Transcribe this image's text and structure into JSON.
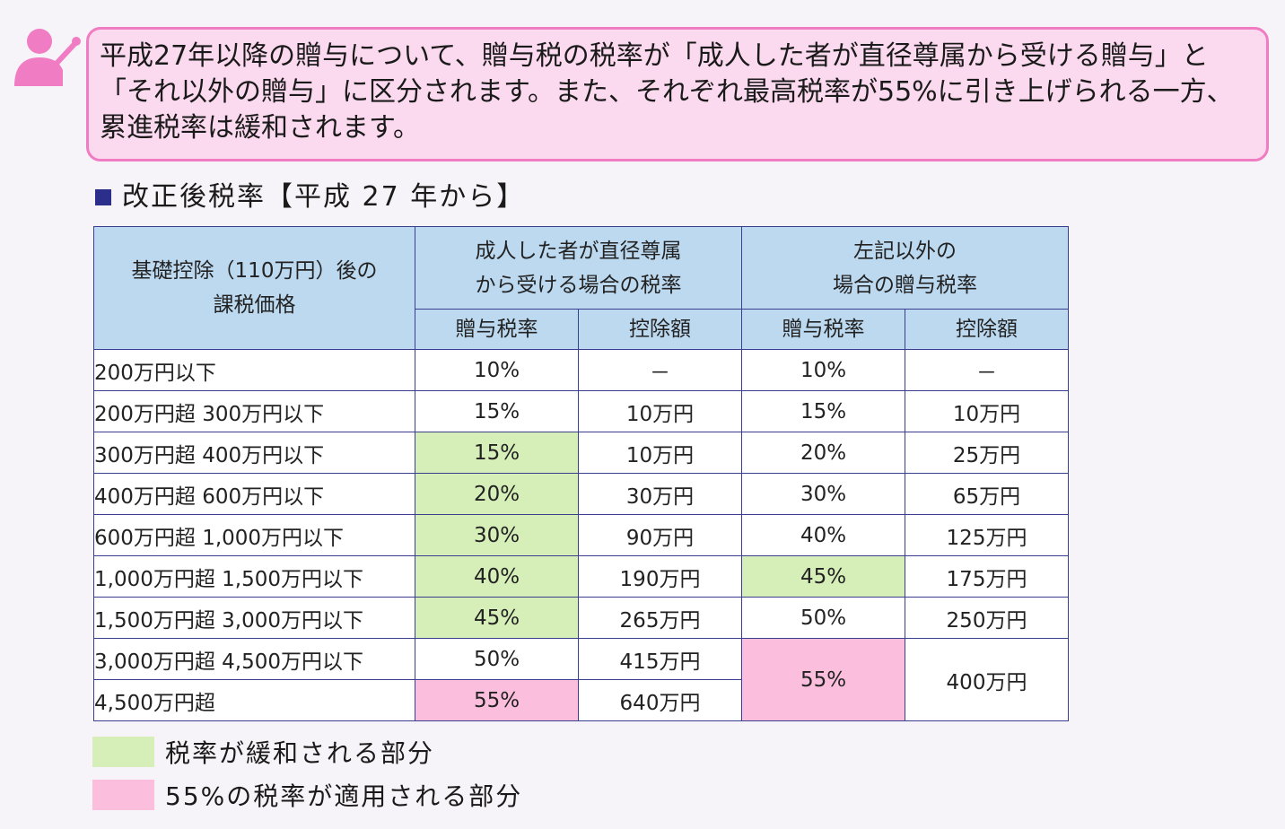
{
  "callout": {
    "text": "平成27年以降の贈与について、贈与税の税率が「成人した者が直径尊属から受ける贈与」と「それ以外の贈与」に区分されます。また、それぞれ最高税率が55%に引き上げられる一方、累進税率は緩和されます。"
  },
  "section": {
    "title": "改正後税率【平成 27 年から】"
  },
  "table": {
    "head_base": [
      "基礎控除（110万円）後の",
      "課税価格"
    ],
    "head_group1": [
      "成人した者が直径尊属",
      "から受ける場合の税率"
    ],
    "head_group2": [
      "左記以外の",
      "場合の贈与税率"
    ],
    "head_rate": "贈与税率",
    "head_deduct": "控除額",
    "rows": [
      {
        "range": "200万円以下",
        "rate1": "10%",
        "ded1": "－",
        "rate2": "10%",
        "ded2": "－"
      },
      {
        "range": "200万円超 300万円以下",
        "rate1": "15%",
        "ded1": "10万円",
        "rate2": "15%",
        "ded2": "10万円"
      },
      {
        "range": "300万円超 400万円以下",
        "rate1": "15%",
        "ded1": "10万円",
        "rate2": "20%",
        "ded2": "25万円"
      },
      {
        "range": "400万円超 600万円以下",
        "rate1": "20%",
        "ded1": "30万円",
        "rate2": "30%",
        "ded2": "65万円"
      },
      {
        "range": "600万円超 1,000万円以下",
        "rate1": "30%",
        "ded1": "90万円",
        "rate2": "40%",
        "ded2": "125万円"
      },
      {
        "range": "1,000万円超 1,500万円以下",
        "rate1": "40%",
        "ded1": "190万円",
        "rate2": "45%",
        "ded2": "175万円"
      },
      {
        "range": "1,500万円超 3,000万円以下",
        "rate1": "45%",
        "ded1": "265万円",
        "rate2": "50%",
        "ded2": "250万円"
      },
      {
        "range": "3,000万円超 4,500万円以下",
        "rate1": "50%",
        "ded1": "415万円",
        "rate2": "55%",
        "ded2": "400万円"
      },
      {
        "range": "4,500万円超",
        "rate1": "55%",
        "ded1": "640万円"
      }
    ]
  },
  "legend": {
    "eased": "税率が緩和される部分",
    "max_rate": "55%の税率が適用される部分"
  },
  "colors": {
    "eased": "#d6efb8",
    "max_rate": "#fbbfdd",
    "header": "#bcd9f0",
    "accent": "#f07cc4"
  }
}
